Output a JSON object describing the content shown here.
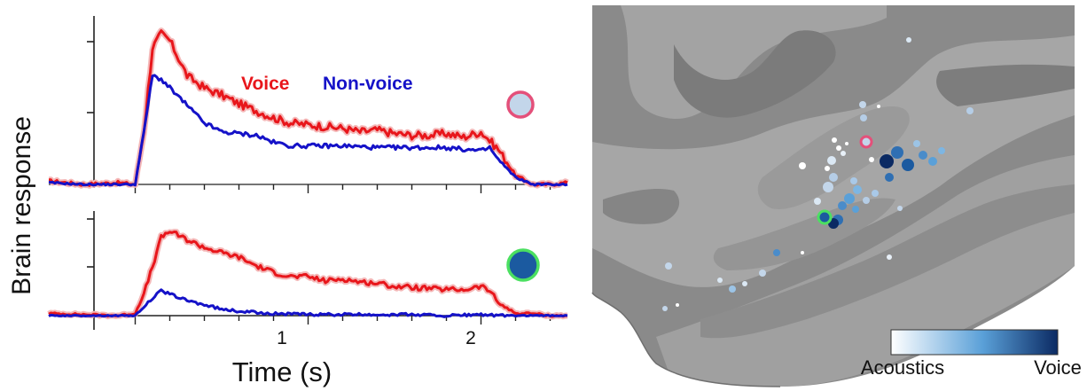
{
  "figure": {
    "ylabel": "Brain response",
    "xlabel": "Time (s)",
    "xticks": [
      "1",
      "2"
    ],
    "legend": {
      "voice": "Voice",
      "nonvoice": "Non-voice"
    },
    "colorbar": {
      "left_label": "Acoustics",
      "right_label": "Voice",
      "colors": [
        "#ffffff",
        "#5aa0d8",
        "#0b2a63"
      ]
    },
    "colors": {
      "voice": "#e8161b",
      "nonvoice": "#1512c8",
      "voice_band": "#f4b8b8",
      "top_marker_fill": "#c3d6ea",
      "top_marker_ring": "#e4507a",
      "bottom_marker_fill": "#1b5aa0",
      "bottom_marker_ring": "#4be061"
    },
    "surface_icons": [
      "brain-surface-map"
    ]
  },
  "chart_data": [
    {
      "type": "line",
      "title": "",
      "xlabel": "Time (s)",
      "ylabel": "Brain response",
      "xlim": [
        -0.5,
        2.5
      ],
      "ylim": [
        0,
        1.0
      ],
      "yticks": [
        0.43,
        0.86
      ],
      "xtick_values": [
        0,
        1,
        2
      ],
      "legend": "top-right",
      "series": [
        {
          "name": "Voice",
          "x": [
            -0.5,
            -0.3,
            -0.1,
            0.0,
            0.05,
            0.1,
            0.15,
            0.2,
            0.25,
            0.3,
            0.4,
            0.5,
            0.6,
            0.7,
            0.8,
            0.9,
            1.0,
            1.1,
            1.2,
            1.3,
            1.4,
            1.5,
            1.6,
            1.7,
            1.8,
            1.9,
            2.0,
            2.05,
            2.1,
            2.2,
            2.3,
            2.4,
            2.5
          ],
          "y": [
            0.02,
            0.0,
            0.01,
            0.0,
            0.3,
            0.78,
            0.86,
            0.82,
            0.72,
            0.62,
            0.55,
            0.51,
            0.46,
            0.42,
            0.38,
            0.35,
            0.34,
            0.33,
            0.32,
            0.3,
            0.31,
            0.29,
            0.28,
            0.28,
            0.29,
            0.27,
            0.3,
            0.25,
            0.2,
            0.05,
            0.0,
            0.0,
            0.01
          ]
        },
        {
          "name": "Non-voice",
          "x": [
            -0.5,
            -0.3,
            -0.1,
            0.0,
            0.05,
            0.1,
            0.15,
            0.2,
            0.3,
            0.4,
            0.5,
            0.6,
            0.7,
            0.8,
            0.9,
            1.0,
            1.2,
            1.4,
            1.6,
            1.8,
            2.0,
            2.05,
            2.1,
            2.2,
            2.3,
            2.4,
            2.5
          ],
          "y": [
            0.01,
            0.0,
            0.0,
            0.0,
            0.3,
            0.62,
            0.6,
            0.55,
            0.45,
            0.35,
            0.3,
            0.29,
            0.28,
            0.24,
            0.22,
            0.22,
            0.22,
            0.21,
            0.21,
            0.21,
            0.19,
            0.21,
            0.14,
            0.04,
            0.0,
            0.0,
            0.0
          ]
        }
      ]
    },
    {
      "type": "line",
      "title": "",
      "xlabel": "Time (s)",
      "ylabel": "Brain response",
      "xlim": [
        -0.5,
        2.5
      ],
      "ylim": [
        0,
        1.0
      ],
      "yticks": [
        0.43,
        0.86
      ],
      "xtick_values": [
        0,
        1,
        2
      ],
      "series": [
        {
          "name": "Voice",
          "x": [
            -0.5,
            -0.3,
            -0.1,
            0.0,
            0.05,
            0.1,
            0.15,
            0.2,
            0.25,
            0.3,
            0.4,
            0.5,
            0.6,
            0.7,
            0.8,
            0.9,
            1.0,
            1.1,
            1.2,
            1.3,
            1.4,
            1.5,
            1.6,
            1.7,
            1.8,
            1.9,
            2.0,
            2.05,
            2.1,
            2.2,
            2.3,
            2.4,
            2.5
          ],
          "y": [
            0.02,
            0.01,
            0.0,
            0.02,
            0.2,
            0.45,
            0.72,
            0.78,
            0.74,
            0.7,
            0.63,
            0.58,
            0.54,
            0.46,
            0.4,
            0.36,
            0.36,
            0.32,
            0.34,
            0.31,
            0.3,
            0.27,
            0.26,
            0.25,
            0.24,
            0.24,
            0.27,
            0.23,
            0.12,
            0.02,
            0.02,
            0.0,
            0.0
          ]
        },
        {
          "name": "Non-voice",
          "x": [
            -0.5,
            -0.3,
            -0.1,
            0.0,
            0.05,
            0.1,
            0.15,
            0.2,
            0.3,
            0.4,
            0.5,
            0.6,
            0.8,
            1.0,
            1.2,
            1.4,
            1.6,
            1.8,
            2.0,
            2.1,
            2.2,
            2.3,
            2.4,
            2.5
          ],
          "y": [
            0.0,
            0.0,
            0.0,
            0.0,
            0.08,
            0.16,
            0.23,
            0.2,
            0.14,
            0.1,
            0.06,
            0.04,
            0.02,
            0.01,
            0.01,
            0.01,
            0.01,
            0.0,
            0.01,
            0.0,
            0.0,
            0.0,
            0.0,
            0.0
          ]
        }
      ]
    }
  ]
}
